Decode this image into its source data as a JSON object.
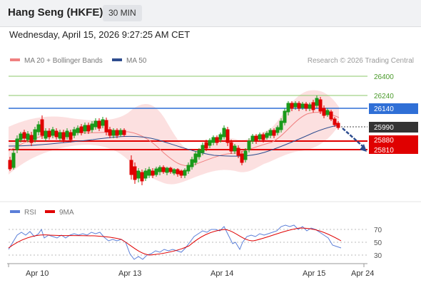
{
  "header": {
    "title": "Hang Seng (HKFE)",
    "timeframe": "30 MIN"
  },
  "datetime": "Wednesday, April 15, 2026 9:27:25 AM CET",
  "legend": {
    "bollinger": "MA 20 + Bollinger Bands",
    "ma50": "MA 50",
    "copyright": "Research © 2026 Trading Central",
    "rsi": "RSI",
    "ma9": "9MA"
  },
  "colors": {
    "bollinger": "#f08080",
    "ma50": "#2e4d8f",
    "resistance": "#6ab04c",
    "pivot": "#2f6fd6",
    "support": "#e00000",
    "current": "#333333",
    "rsi": "#5b7fd8",
    "ma9": "#e00000"
  },
  "levels": {
    "r2": "26400",
    "r1": "26240",
    "pivot": "26140",
    "current": "25990",
    "s1": "25880",
    "s2": "25810"
  },
  "rsi_levels": {
    "upper": "70",
    "mid": "50",
    "lower": "30"
  },
  "xaxis": [
    "Apr 10",
    "Apr 13",
    "Apr 14",
    "Apr 15",
    "Apr 24"
  ],
  "chart_data": {
    "type": "candlestick",
    "y_levels": {
      "resistance_2": 26400,
      "resistance_1": 26240,
      "pivot": 26140,
      "last": 25990,
      "support_1": 25880,
      "support_2": 25810
    },
    "rsi": {
      "levels": [
        70,
        50,
        30
      ]
    }
  }
}
